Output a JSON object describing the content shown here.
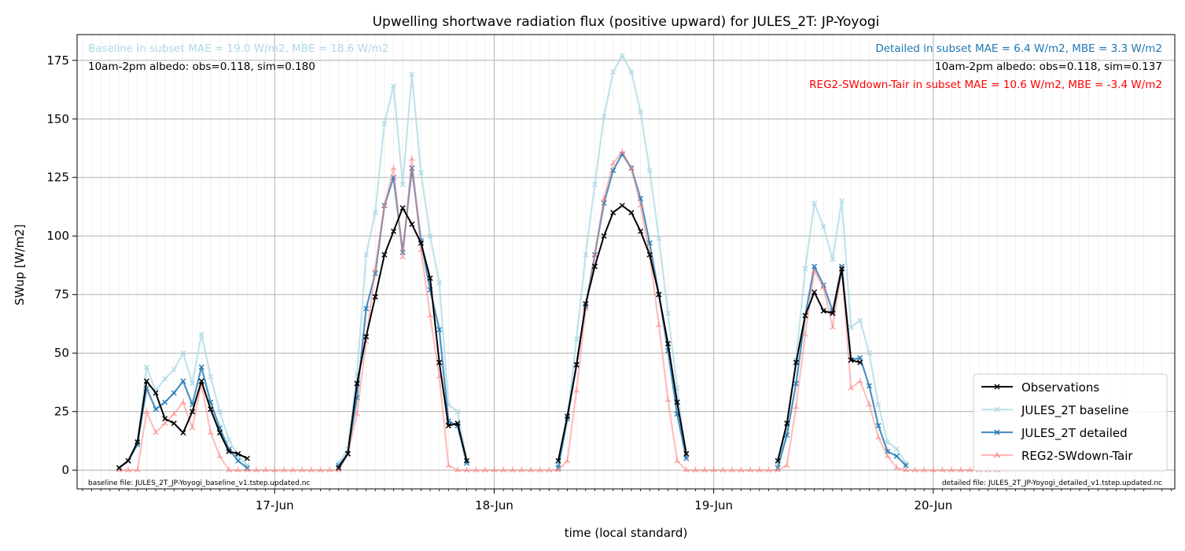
{
  "chart_data": {
    "type": "line",
    "title": "Upwelling shortwave radiation flux (positive upward) for JULES_2T: JP-Yoyogi",
    "xlabel": "time (local standard)",
    "ylabel": "SWup [W/m2]",
    "x_unit": "hours since 16-Jun 00:00 (local standard)",
    "xlim": [
      2.4,
      122.4
    ],
    "ylim": [
      -8,
      186
    ],
    "yticks": [
      0,
      25,
      50,
      75,
      100,
      125,
      150,
      175
    ],
    "xticks": [
      {
        "x": 24,
        "label": "17-Jun"
      },
      {
        "x": 48,
        "label": "18-Jun"
      },
      {
        "x": 72,
        "label": "19-Jun"
      },
      {
        "x": 96,
        "label": "20-Jun"
      }
    ],
    "grid": true,
    "legend_position": "lower right",
    "series": [
      {
        "name": "Observations",
        "color": "#000000",
        "marker": "x",
        "points": [
          [
            7,
            1
          ],
          [
            8,
            4
          ],
          [
            9,
            12
          ],
          [
            10,
            38
          ],
          [
            11,
            33
          ],
          [
            12,
            22
          ],
          [
            13,
            20
          ],
          [
            14,
            16
          ],
          [
            15,
            25
          ],
          [
            16,
            38
          ],
          [
            17,
            26
          ],
          [
            18,
            16
          ],
          [
            19,
            8
          ],
          [
            20,
            7
          ],
          [
            21,
            5
          ],
          [
            31,
            1
          ],
          [
            32,
            7
          ],
          [
            33,
            37
          ],
          [
            34,
            57
          ],
          [
            35,
            74
          ],
          [
            36,
            92
          ],
          [
            37,
            102
          ],
          [
            38,
            112
          ],
          [
            39,
            105
          ],
          [
            40,
            97
          ],
          [
            41,
            82
          ],
          [
            42,
            46
          ],
          [
            43,
            19
          ],
          [
            44,
            20
          ],
          [
            45,
            4
          ],
          [
            55,
            4
          ],
          [
            56,
            23
          ],
          [
            57,
            45
          ],
          [
            58,
            71
          ],
          [
            59,
            87
          ],
          [
            60,
            100
          ],
          [
            61,
            110
          ],
          [
            62,
            113
          ],
          [
            63,
            110
          ],
          [
            64,
            102
          ],
          [
            65,
            92
          ],
          [
            66,
            75
          ],
          [
            67,
            54
          ],
          [
            68,
            29
          ],
          [
            69,
            7
          ],
          [
            79,
            4
          ],
          [
            80,
            20
          ],
          [
            81,
            46
          ],
          [
            82,
            66
          ],
          [
            83,
            76
          ],
          [
            84,
            68
          ],
          [
            85,
            67
          ],
          [
            86,
            86
          ],
          [
            87,
            47
          ],
          [
            88,
            46
          ]
        ]
      },
      {
        "name": "JULES_2T baseline",
        "color": "#add8e6",
        "marker": "x",
        "points": [
          [
            7,
            1
          ],
          [
            8,
            4
          ],
          [
            9,
            11
          ],
          [
            10,
            44
          ],
          [
            11,
            34
          ],
          [
            12,
            39
          ],
          [
            13,
            43
          ],
          [
            14,
            50
          ],
          [
            15,
            37
          ],
          [
            16,
            58
          ],
          [
            17,
            40
          ],
          [
            18,
            25
          ],
          [
            19,
            13
          ],
          [
            20,
            6
          ],
          [
            21,
            2
          ],
          [
            31,
            3
          ],
          [
            32,
            9
          ],
          [
            33,
            41
          ],
          [
            34,
            92
          ],
          [
            35,
            110
          ],
          [
            36,
            148
          ],
          [
            37,
            164
          ],
          [
            38,
            122
          ],
          [
            39,
            169
          ],
          [
            40,
            127
          ],
          [
            41,
            100
          ],
          [
            42,
            80
          ],
          [
            43,
            28
          ],
          [
            44,
            25
          ],
          [
            45,
            4
          ],
          [
            55,
            2
          ],
          [
            56,
            22
          ],
          [
            57,
            56
          ],
          [
            58,
            92
          ],
          [
            59,
            122
          ],
          [
            60,
            151
          ],
          [
            61,
            170
          ],
          [
            62,
            177
          ],
          [
            63,
            170
          ],
          [
            64,
            153
          ],
          [
            65,
            128
          ],
          [
            66,
            99
          ],
          [
            67,
            67
          ],
          [
            68,
            35
          ],
          [
            69,
            6
          ],
          [
            79,
            3
          ],
          [
            80,
            18
          ],
          [
            81,
            47
          ],
          [
            82,
            86
          ],
          [
            83,
            114
          ],
          [
            84,
            104
          ],
          [
            85,
            90
          ],
          [
            86,
            115
          ],
          [
            87,
            61
          ],
          [
            88,
            64
          ],
          [
            89,
            50
          ],
          [
            90,
            28
          ],
          [
            91,
            12
          ],
          [
            92,
            9
          ],
          [
            93,
            3
          ]
        ]
      },
      {
        "name": "JULES_2T detailed",
        "color": "#1f77b4",
        "marker": "x",
        "points": [
          [
            7,
            1
          ],
          [
            8,
            4
          ],
          [
            9,
            11
          ],
          [
            10,
            35
          ],
          [
            11,
            26
          ],
          [
            12,
            29
          ],
          [
            13,
            33
          ],
          [
            14,
            38
          ],
          [
            15,
            28
          ],
          [
            16,
            44
          ],
          [
            17,
            29
          ],
          [
            18,
            18
          ],
          [
            19,
            9
          ],
          [
            20,
            4
          ],
          [
            21,
            1
          ],
          [
            31,
            2
          ],
          [
            32,
            7
          ],
          [
            33,
            31
          ],
          [
            34,
            69
          ],
          [
            35,
            84
          ],
          [
            36,
            113
          ],
          [
            37,
            125
          ],
          [
            38,
            93
          ],
          [
            39,
            129
          ],
          [
            40,
            98
          ],
          [
            41,
            77
          ],
          [
            42,
            60
          ],
          [
            43,
            21
          ],
          [
            44,
            19
          ],
          [
            45,
            3
          ],
          [
            55,
            1
          ],
          [
            56,
            22
          ],
          [
            57,
            45
          ],
          [
            58,
            70
          ],
          [
            59,
            92
          ],
          [
            60,
            114
          ],
          [
            61,
            128
          ],
          [
            62,
            135
          ],
          [
            63,
            129
          ],
          [
            64,
            116
          ],
          [
            65,
            97
          ],
          [
            66,
            75
          ],
          [
            67,
            51
          ],
          [
            68,
            24
          ],
          [
            69,
            5
          ],
          [
            79,
            1
          ],
          [
            80,
            15
          ],
          [
            81,
            37
          ],
          [
            82,
            66
          ],
          [
            83,
            87
          ],
          [
            84,
            79
          ],
          [
            85,
            68
          ],
          [
            86,
            87
          ],
          [
            87,
            47
          ],
          [
            88,
            48
          ],
          [
            89,
            36
          ],
          [
            90,
            19
          ],
          [
            91,
            8
          ],
          [
            92,
            6
          ],
          [
            93,
            2
          ]
        ]
      },
      {
        "name": "REG2-SWdown-Tair",
        "color": "#ff7f7f",
        "marker": "tri",
        "points": [
          [
            7,
            0
          ],
          [
            8,
            0
          ],
          [
            9,
            0
          ],
          [
            10,
            25
          ],
          [
            11,
            16
          ],
          [
            12,
            20
          ],
          [
            13,
            24
          ],
          [
            14,
            29
          ],
          [
            15,
            18
          ],
          [
            16,
            37
          ],
          [
            17,
            16
          ],
          [
            18,
            6
          ],
          [
            19,
            0
          ],
          [
            20,
            0
          ],
          [
            21,
            0
          ],
          [
            22,
            0
          ],
          [
            23,
            0
          ],
          [
            24,
            0
          ],
          [
            25,
            0
          ],
          [
            26,
            0
          ],
          [
            27,
            0
          ],
          [
            28,
            0
          ],
          [
            29,
            0
          ],
          [
            30,
            0
          ],
          [
            31,
            0
          ],
          [
            32,
            7
          ],
          [
            33,
            24
          ],
          [
            34,
            55
          ],
          [
            35,
            86
          ],
          [
            36,
            113
          ],
          [
            37,
            129
          ],
          [
            38,
            91
          ],
          [
            39,
            133
          ],
          [
            40,
            94
          ],
          [
            41,
            66
          ],
          [
            42,
            40
          ],
          [
            43,
            2
          ],
          [
            44,
            0
          ],
          [
            45,
            0
          ],
          [
            46,
            0
          ],
          [
            47,
            0
          ],
          [
            48,
            0
          ],
          [
            49,
            0
          ],
          [
            50,
            0
          ],
          [
            51,
            0
          ],
          [
            52,
            0
          ],
          [
            53,
            0
          ],
          [
            54,
            0
          ],
          [
            55,
            0
          ],
          [
            56,
            4
          ],
          [
            57,
            34
          ],
          [
            58,
            69
          ],
          [
            59,
            92
          ],
          [
            60,
            116
          ],
          [
            61,
            131
          ],
          [
            62,
            136
          ],
          [
            63,
            129
          ],
          [
            64,
            113
          ],
          [
            65,
            92
          ],
          [
            66,
            62
          ],
          [
            67,
            30
          ],
          [
            68,
            4
          ],
          [
            69,
            0
          ],
          [
            70,
            0
          ],
          [
            71,
            0
          ],
          [
            72,
            0
          ],
          [
            73,
            0
          ],
          [
            74,
            0
          ],
          [
            75,
            0
          ],
          [
            76,
            0
          ],
          [
            77,
            0
          ],
          [
            78,
            0
          ],
          [
            79,
            0
          ],
          [
            80,
            2
          ],
          [
            81,
            27
          ],
          [
            82,
            58
          ],
          [
            83,
            85
          ],
          [
            84,
            78
          ],
          [
            85,
            61
          ],
          [
            86,
            86
          ],
          [
            87,
            35
          ],
          [
            88,
            38
          ],
          [
            89,
            28
          ],
          [
            90,
            14
          ],
          [
            91,
            6
          ],
          [
            92,
            1
          ],
          [
            93,
            0
          ],
          [
            94,
            0
          ],
          [
            95,
            0
          ],
          [
            96,
            0
          ],
          [
            97,
            0
          ],
          [
            98,
            0
          ],
          [
            99,
            0
          ],
          [
            100,
            0
          ],
          [
            101,
            0
          ],
          [
            102,
            0
          ],
          [
            103,
            0
          ]
        ]
      }
    ],
    "annotations": {
      "baseline_stats": "Baseline in subset MAE = 19.0 W/m2, MBE = 18.6 W/m2",
      "baseline_albedo": "10am-2pm albedo: obs=0.118, sim=0.180",
      "detailed_stats": "Detailed in subset MAE = 6.4 W/m2, MBE = 3.3 W/m2",
      "detailed_albedo": "10am-2pm albedo: obs=0.118, sim=0.137",
      "reg2_stats": "REG2-SWdown-Tair in subset MAE = 10.6 W/m2, MBE = -3.4 W/m2",
      "baseline_file": "baseline file: JULES_2T_JP-Yoyogi_baseline_v1.tstep.updated.nc",
      "detailed_file": "detailed file: JULES_2T_JP-Yoyogi_detailed_v1.tstep.updated.nc"
    },
    "colors": {
      "baseline_text": "#add8e6",
      "detailed_text": "#1f77b4",
      "reg2_text": "#ff0000",
      "grid": "#b0b0b0"
    }
  }
}
